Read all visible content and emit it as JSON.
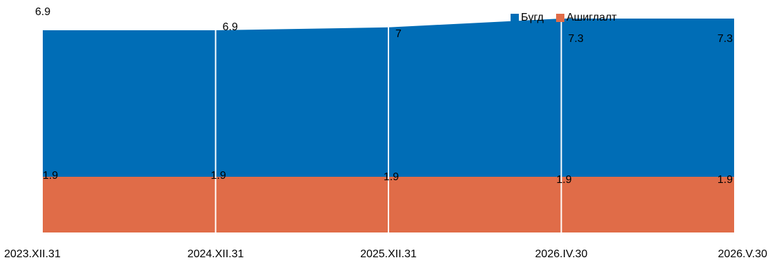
{
  "chart_data": {
    "type": "area",
    "categories": [
      "2023.XII.31",
      "2024.XII.31",
      "2025.XII.31",
      "2026.IV.30",
      "2026.V.30"
    ],
    "series": [
      {
        "name": "Бүгд",
        "values": [
          6.9,
          6.9,
          7.0,
          7.3,
          7.3
        ],
        "labels": [
          "6.9",
          "6.9",
          "7",
          "7.3",
          "7.3"
        ],
        "color": "#006DB6"
      },
      {
        "name": "Ашиглалт",
        "values": [
          1.9,
          1.9,
          1.9,
          1.9,
          1.9
        ],
        "labels": [
          "1.9",
          "1.9",
          "1.9",
          "1.9",
          "1.9"
        ],
        "color": "#E06C48"
      }
    ],
    "ylim": [
      0,
      7.3
    ],
    "grid": false,
    "legend_position": "top-right",
    "gridline_color": "#ffffff"
  }
}
